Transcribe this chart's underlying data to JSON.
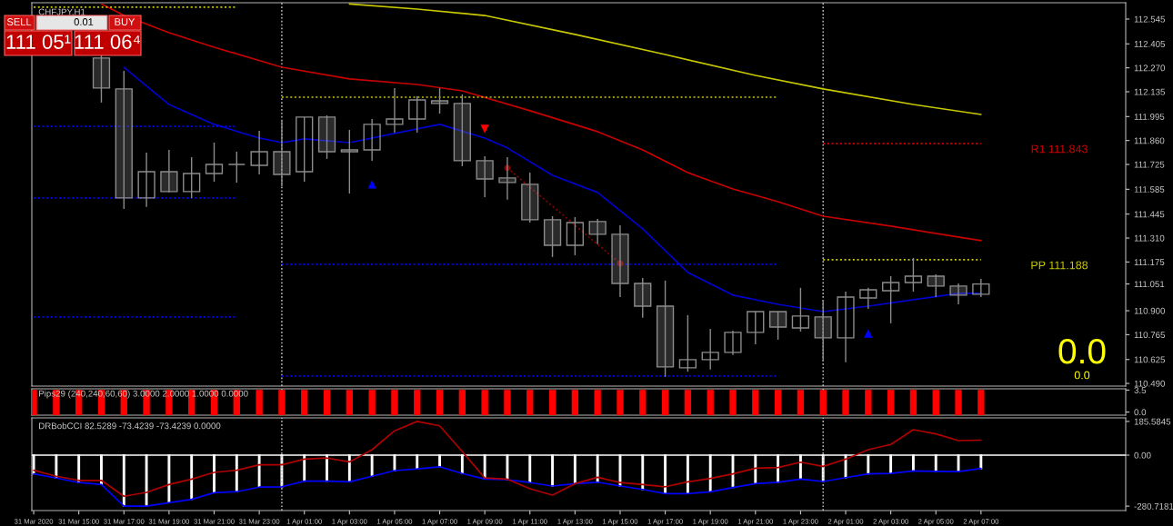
{
  "chart_data": [
    {
      "type": "candlestick",
      "title": "CHFJPY,H1",
      "tick_labels": "y",
      "xlim": [
        "2020-03-31T12:55",
        "2020-04-02T13:25"
      ],
      "ylim": [
        110.475,
        112.637
      ],
      "yticks": [
        112.545,
        112.405,
        {
          "value": 112.27,
          "label": "112.270"
        },
        112.135,
        111.995,
        {
          "value": 111.86,
          "label": "111.860"
        },
        111.725,
        111.585,
        111.445,
        {
          "value": 111.31,
          "label": "111.310"
        },
        111.175,
        111.051,
        {
          "value": 110.9,
          "label": "110.900"
        },
        110.765,
        110.625,
        {
          "value": 110.49,
          "label": "110.490"
        }
      ],
      "series": [
        {
          "type": "candlestick",
          "color": "#8c8c8c",
          "x": [
            "2020-03-31T16:00",
            "2020-03-31T17:00",
            "2020-03-31T18:00",
            "2020-03-31T19:00",
            "2020-03-31T20:00",
            "2020-03-31T21:00",
            "2020-03-31T22:00",
            "2020-03-31T23:00",
            "2020-04-01T00:00",
            "2020-04-01T01:00",
            "2020-04-01T02:00",
            "2020-04-01T03:00",
            "2020-04-01T04:00",
            "2020-04-01T05:00",
            "2020-04-01T06:00",
            "2020-04-01T07:00",
            "2020-04-01T08:00",
            "2020-04-01T09:00",
            "2020-04-01T10:00",
            "2020-04-01T11:00",
            "2020-04-01T12:00",
            "2020-04-01T13:00",
            "2020-04-01T14:00",
            "2020-04-01T15:00",
            "2020-04-01T16:00",
            "2020-04-01T17:00",
            "2020-04-01T18:00",
            "2020-04-01T19:00",
            "2020-04-01T20:00",
            "2020-04-01T21:00",
            "2020-04-01T22:00",
            "2020-04-01T23:00",
            "2020-04-02T00:00",
            "2020-04-02T01:00",
            "2020-04-02T02:00",
            "2020-04-02T03:00",
            "2020-04-02T04:00",
            "2020-04-02T05:00",
            "2020-04-02T06:00",
            "2020-04-02T07:00"
          ],
          "ohlc": [
            [
              112.325,
              112.345,
              112.074,
              112.156
            ],
            [
              112.151,
              112.253,
              111.474,
              111.536
            ],
            [
              111.536,
              111.792,
              111.485,
              111.684
            ],
            [
              111.684,
              111.807,
              111.567,
              111.572
            ],
            [
              111.572,
              111.766,
              111.536,
              111.674
            ],
            [
              111.674,
              111.848,
              111.628,
              111.725
            ],
            [
              111.725,
              111.797,
              111.623,
              111.725
            ],
            [
              111.72,
              111.915,
              111.669,
              111.797
            ],
            [
              111.797,
              111.976,
              111.602,
              111.669
            ],
            [
              111.684,
              111.992,
              111.628,
              111.992
            ],
            [
              111.992,
              112.002,
              111.756,
              111.797
            ],
            [
              111.797,
              111.92,
              111.561,
              111.807
            ],
            [
              111.807,
              111.981,
              111.746,
              111.951
            ],
            [
              111.951,
              112.156,
              111.905,
              111.981
            ],
            [
              111.981,
              112.11,
              111.905,
              112.089
            ],
            [
              112.084,
              112.156,
              112.012,
              112.069
            ],
            [
              112.069,
              112.12,
              111.715,
              111.746
            ],
            [
              111.746,
              111.771,
              111.541,
              111.643
            ],
            [
              111.649,
              111.766,
              111.526,
              111.623
            ],
            [
              111.613,
              111.679,
              111.397,
              111.413
            ],
            [
              111.413,
              111.433,
              111.203,
              111.269
            ],
            [
              111.269,
              111.428,
              111.213,
              111.397
            ],
            [
              111.403,
              111.418,
              111.275,
              111.331
            ],
            [
              111.331,
              111.382,
              110.977,
              111.054
            ],
            [
              111.054,
              111.085,
              110.86,
              110.926
            ],
            [
              110.926,
              111.07,
              110.527,
              110.583
            ],
            [
              110.578,
              110.875,
              110.557,
              110.624
            ],
            [
              110.624,
              110.798,
              110.568,
              110.665
            ],
            [
              110.665,
              110.788,
              110.65,
              110.778
            ],
            [
              110.778,
              110.895,
              110.711,
              110.895
            ],
            [
              110.895,
              110.895,
              110.737,
              110.808
            ],
            [
              110.803,
              111.029,
              110.783,
              110.87
            ],
            [
              110.865,
              110.962,
              110.614,
              110.747
            ],
            [
              110.747,
              111.008,
              110.609,
              110.977
            ],
            [
              110.972,
              111.029,
              110.911,
              111.018
            ],
            [
              111.013,
              111.095,
              110.829,
              111.059
            ],
            [
              111.059,
              111.198,
              111.008,
              111.095
            ],
            [
              111.095,
              111.105,
              110.977,
              111.039
            ],
            [
              111.039,
              111.054,
              110.936,
              110.988
            ],
            [
              110.993,
              111.08,
              110.977,
              111.051
            ]
          ]
        },
        {
          "type": "line",
          "color": "#c8c800",
          "x": [
            "2020-04-01T03:00",
            "2020-04-01T06:00",
            "2020-04-01T09:00",
            "2020-04-01T13:00",
            "2020-04-01T17:00",
            "2020-04-01T21:00",
            "2020-04-02T00:00",
            "2020-04-02T04:00",
            "2020-04-02T07:00"
          ],
          "values": [
            112.63,
            112.601,
            112.565,
            112.458,
            112.345,
            112.227,
            112.151,
            112.063,
            112.007
          ]
        },
        {
          "type": "line",
          "color": "#c80000",
          "x": [
            "2020-03-31T16:00",
            "2020-03-31T17:00",
            "2020-03-31T19:00",
            "2020-03-31T21:00",
            "2020-04-01T00:00",
            "2020-04-01T03:00",
            "2020-04-01T06:00",
            "2020-04-01T08:00",
            "2020-04-01T11:00",
            "2020-04-01T14:00",
            "2020-04-01T16:00",
            "2020-04-01T18:00",
            "2020-04-01T20:00",
            "2020-04-01T22:00",
            "2020-04-02T00:00",
            "2020-04-02T03:00",
            "2020-04-02T07:00"
          ],
          "values": [
            112.63,
            112.565,
            112.468,
            112.386,
            112.273,
            112.207,
            112.176,
            112.14,
            112.028,
            111.91,
            111.807,
            111.679,
            111.587,
            111.515,
            111.433,
            111.377,
            111.295
          ]
        },
        {
          "type": "line",
          "color": "#0000d0",
          "x": [
            "2020-03-31T17:00",
            "2020-03-31T19:00",
            "2020-03-31T21:00",
            "2020-03-31T23:00",
            "2020-04-01T00:00",
            "2020-04-01T01:00",
            "2020-04-01T03:00",
            "2020-04-01T05:00",
            "2020-04-01T07:00",
            "2020-04-01T09:00",
            "2020-04-01T10:00",
            "2020-04-01T12:00",
            "2020-04-01T14:00",
            "2020-04-01T16:00",
            "2020-04-01T18:00",
            "2020-04-01T20:00",
            "2020-04-01T22:00",
            "2020-04-02T00:00",
            "2020-04-02T02:00",
            "2020-04-02T04:00",
            "2020-04-02T06:00",
            "2020-04-02T07:00"
          ],
          "values": [
            112.273,
            112.063,
            111.951,
            111.874,
            111.848,
            111.869,
            111.848,
            111.9,
            111.951,
            111.874,
            111.818,
            111.664,
            111.567,
            111.362,
            111.116,
            110.988,
            110.936,
            110.895,
            110.926,
            110.962,
            110.998,
            110.998
          ]
        },
        {
          "type": "line",
          "color": "#c8c800",
          "line_style": "dotted",
          "x": [
            "2020-03-31T13:00",
            "2020-03-31T22:00"
          ],
          "values": [
            112.612,
            112.612
          ]
        },
        {
          "type": "line",
          "color": "#0000ff",
          "line_style": "dotted",
          "x": [
            "2020-03-31T13:00",
            "2020-03-31T22:00"
          ],
          "values": [
            111.94,
            111.94
          ]
        },
        {
          "type": "line",
          "color": "#0000ff",
          "line_style": "dotted",
          "x": [
            "2020-03-31T13:00",
            "2020-03-31T22:00"
          ],
          "values": [
            111.536,
            111.536
          ]
        },
        {
          "type": "line",
          "color": "#0000ff",
          "line_style": "dotted",
          "x": [
            "2020-03-31T13:00",
            "2020-03-31T22:00"
          ],
          "values": [
            110.865,
            110.865
          ]
        },
        {
          "type": "line",
          "color": "#c8c800",
          "line_style": "dotted",
          "x": [
            "2020-04-01T00:00",
            "2020-04-01T22:00"
          ],
          "values": [
            112.104,
            112.104
          ]
        },
        {
          "type": "line",
          "color": "#0000ff",
          "line_style": "dotted",
          "x": [
            "2020-04-01T00:00",
            "2020-04-01T22:00"
          ],
          "values": [
            111.162,
            111.162
          ]
        },
        {
          "type": "line",
          "color": "#0000ff",
          "line_style": "dotted",
          "x": [
            "2020-04-01T00:00",
            "2020-04-01T22:00"
          ],
          "values": [
            110.532,
            110.532
          ]
        },
        {
          "type": "line",
          "color": "#ff0000",
          "line_style": "dotted",
          "x": [
            "2020-04-02T00:00",
            "2020-04-02T07:00"
          ],
          "values": [
            111.843,
            111.843
          ]
        },
        {
          "type": "line",
          "color": "#c8c800",
          "line_style": "dotted",
          "x": [
            "2020-04-02T00:00",
            "2020-04-02T07:00"
          ],
          "values": [
            111.188,
            111.188
          ]
        },
        {
          "type": "line",
          "color": "#8b0000",
          "line_style": "dotted",
          "marker": "circle",
          "x": [
            "2020-04-01T10:00",
            "2020-04-01T15:00"
          ],
          "values": [
            111.705,
            111.167
          ]
        },
        {
          "type": "scatter",
          "color": "#0000ff",
          "marker": "triangle",
          "x": [
            "2020-04-01T04:00",
            "2020-04-02T02:00"
          ],
          "values": [
            111.613,
            110.772
          ]
        },
        {
          "type": "scatter",
          "color": "#ff0000",
          "marker": "triangle",
          "x": [
            "2020-04-01T09:00"
          ],
          "values": [
            111.925
          ]
        }
      ],
      "ref_lines": [
        {
          "axis": "x",
          "value": "2020-04-01T00:00",
          "color": "#c8c8c8",
          "line_style": "dotted"
        },
        {
          "axis": "x",
          "value": "2020-04-02T00:00",
          "color": "#c8c8c8",
          "line_style": "dotted"
        }
      ],
      "annotations": [
        "SELL",
        "0.01",
        "BUY",
        "111 05¹",
        "111 06⁴",
        "0.0",
        "0.0",
        "R1 111.843",
        "PP 111.188"
      ]
    },
    {
      "type": "scatter",
      "title": "Pips29 (240,240,60,60) 3.0000 2.0000 1.0000 0.0000",
      "tick_labels": "y",
      "marker": "square",
      "xlim": [
        "2020-03-31T12:55",
        "2020-04-02T13:25"
      ],
      "ylim": [
        -0.5,
        3.7
      ],
      "yticks": [
        3.5,
        {
          "value": 0,
          "label": "0.0"
        }
      ],
      "x": [
        "2020-03-31T13:00",
        "2020-03-31T14:00",
        "2020-03-31T15:00",
        "2020-03-31T16:00",
        "2020-03-31T17:00",
        "2020-03-31T18:00",
        "2020-03-31T19:00",
        "2020-03-31T20:00",
        "2020-03-31T21:00",
        "2020-03-31T22:00",
        "2020-03-31T23:00",
        "2020-04-01T00:00",
        "2020-04-01T01:00",
        "2020-04-01T02:00",
        "2020-04-01T03:00",
        "2020-04-01T04:00",
        "2020-04-01T05:00",
        "2020-04-01T06:00",
        "2020-04-01T07:00",
        "2020-04-01T08:00",
        "2020-04-01T09:00",
        "2020-04-01T10:00",
        "2020-04-01T11:00",
        "2020-04-01T12:00",
        "2020-04-01T13:00",
        "2020-04-01T14:00",
        "2020-04-01T15:00",
        "2020-04-01T16:00",
        "2020-04-01T17:00",
        "2020-04-01T18:00",
        "2020-04-01T19:00",
        "2020-04-01T20:00",
        "2020-04-01T21:00",
        "2020-04-01T22:00",
        "2020-04-01T23:00",
        "2020-04-02T00:00",
        "2020-04-02T01:00",
        "2020-04-02T02:00",
        "2020-04-02T03:00",
        "2020-04-02T04:00",
        "2020-04-02T05:00",
        "2020-04-02T06:00",
        "2020-04-02T07:00"
      ],
      "series": [
        {
          "color": "#ff0000",
          "values": [
            3,
            3,
            3,
            3,
            3,
            3,
            3,
            3,
            3,
            3,
            3,
            3,
            3,
            3,
            3,
            3,
            3,
            3,
            3,
            3,
            3,
            3,
            3,
            3,
            3,
            3,
            3,
            3,
            3,
            3,
            3,
            3,
            3,
            3,
            3,
            3,
            3,
            3,
            3,
            3,
            3,
            3,
            3
          ]
        },
        {
          "color": "#ff0000",
          "values": [
            2,
            2,
            2,
            2,
            2,
            2,
            2,
            2,
            2,
            2,
            2,
            2,
            2,
            2,
            2,
            2,
            2,
            2,
            2,
            2,
            2,
            2,
            2,
            2,
            2,
            2,
            2,
            2,
            2,
            2,
            2,
            2,
            2,
            2,
            2,
            2,
            2,
            2,
            2,
            2,
            2,
            2,
            2
          ]
        },
        {
          "color": "#ff0000",
          "values": [
            1,
            1,
            1,
            1,
            1,
            1,
            1,
            1,
            1,
            1,
            1,
            1,
            1,
            1,
            1,
            1,
            1,
            1,
            1,
            1,
            1,
            1,
            1,
            1,
            1,
            1,
            1,
            1,
            1,
            1,
            1,
            1,
            1,
            1,
            1,
            1,
            1,
            1,
            1,
            1,
            1,
            1,
            1
          ]
        },
        {
          "color": "#ff0000",
          "values": [
            0,
            0,
            0,
            0,
            0,
            0,
            0,
            0,
            0,
            0,
            0,
            0,
            0,
            0,
            0,
            0,
            0,
            0,
            0,
            0,
            0,
            0,
            0,
            0,
            0,
            0,
            0,
            0,
            0,
            0,
            0,
            0,
            0,
            0,
            0,
            0,
            0,
            0,
            0,
            0,
            0,
            0,
            0
          ]
        }
      ],
      "ref_lines": [
        {
          "axis": "x",
          "value": "2020-04-01T00:00",
          "color": "#c8c8c8",
          "line_style": "dotted"
        },
        {
          "axis": "x",
          "value": "2020-04-02T00:00",
          "color": "#c8c8c8",
          "line_style": "dotted"
        }
      ]
    },
    {
      "type": "line",
      "title": "DRBobCCI 82.5289 -73.4239 -73.4239 0.0000",
      "xlim": [
        "2020-03-31T12:55",
        "2020-04-02T13:25"
      ],
      "ylim": [
        -305,
        205
      ],
      "yticks": [
        185.5845,
        {
          "value": 0,
          "label": "0.00"
        },
        -280.7181
      ],
      "xticks": [
        {
          "value": "2020-03-31T13:00",
          "label": "31 Mar 2020"
        },
        {
          "value": "2020-03-31T15:00",
          "label": "31 Mar 15:00"
        },
        {
          "value": "2020-03-31T17:00",
          "label": "31 Mar 17:00"
        },
        {
          "value": "2020-03-31T19:00",
          "label": "31 Mar 19:00"
        },
        {
          "value": "2020-03-31T21:00",
          "label": "31 Mar 21:00"
        },
        {
          "value": "2020-03-31T23:00",
          "label": "31 Mar 23:00"
        },
        {
          "value": "2020-04-01T01:00",
          "label": "1 Apr 01:00"
        },
        {
          "value": "2020-04-01T03:00",
          "label": "1 Apr 03:00"
        },
        {
          "value": "2020-04-01T05:00",
          "label": "1 Apr 05:00"
        },
        {
          "value": "2020-04-01T07:00",
          "label": "1 Apr 07:00"
        },
        {
          "value": "2020-04-01T09:00",
          "label": "1 Apr 09:00"
        },
        {
          "value": "2020-04-01T11:00",
          "label": "1 Apr 11:00"
        },
        {
          "value": "2020-04-01T13:00",
          "label": "1 Apr 13:00"
        },
        {
          "value": "2020-04-01T15:00",
          "label": "1 Apr 15:00"
        },
        {
          "value": "2020-04-01T17:00",
          "label": "1 Apr 17:00"
        },
        {
          "value": "2020-04-01T19:00",
          "label": "1 Apr 19:00"
        },
        {
          "value": "2020-04-01T21:00",
          "label": "1 Apr 21:00"
        },
        {
          "value": "2020-04-01T23:00",
          "label": "1 Apr 23:00"
        },
        {
          "value": "2020-04-02T01:00",
          "label": "2 Apr 01:00"
        },
        {
          "value": "2020-04-02T03:00",
          "label": "2 Apr 03:00"
        },
        {
          "value": "2020-04-02T05:00",
          "label": "2 Apr 05:00"
        },
        {
          "value": "2020-04-02T07:00",
          "label": "2 Apr 07:00"
        }
      ],
      "x": [
        "2020-03-31T13:00",
        "2020-03-31T14:00",
        "2020-03-31T15:00",
        "2020-03-31T16:00",
        "2020-03-31T17:00",
        "2020-03-31T18:00",
        "2020-03-31T19:00",
        "2020-03-31T20:00",
        "2020-03-31T21:00",
        "2020-03-31T22:00",
        "2020-03-31T23:00",
        "2020-04-01T00:00",
        "2020-04-01T01:00",
        "2020-04-01T02:00",
        "2020-04-01T03:00",
        "2020-04-01T04:00",
        "2020-04-01T05:00",
        "2020-04-01T06:00",
        "2020-04-01T07:00",
        "2020-04-01T08:00",
        "2020-04-01T09:00",
        "2020-04-01T10:00",
        "2020-04-01T11:00",
        "2020-04-01T12:00",
        "2020-04-01T13:00",
        "2020-04-01T14:00",
        "2020-04-01T15:00",
        "2020-04-01T16:00",
        "2020-04-01T17:00",
        "2020-04-01T18:00",
        "2020-04-01T19:00",
        "2020-04-01T20:00",
        "2020-04-01T21:00",
        "2020-04-01T22:00",
        "2020-04-01T23:00",
        "2020-04-02T00:00",
        "2020-04-02T01:00",
        "2020-04-02T02:00",
        "2020-04-02T03:00",
        "2020-04-02T04:00",
        "2020-04-02T05:00",
        "2020-04-02T06:00",
        "2020-04-02T07:00"
      ],
      "series": [
        {
          "type": "bar",
          "color": "#ffffff",
          "values": [
            -103,
            -126,
            -151,
            -162,
            -280.7181,
            -280.7181,
            -262,
            -243,
            -207,
            -201,
            -176,
            -174,
            -143,
            -143,
            -147,
            -116,
            -85,
            -76,
            -64,
            -101,
            -132,
            -135,
            -151,
            -170,
            -157,
            -149,
            -170,
            -189,
            -212,
            -212,
            -202,
            -178,
            -157,
            -149,
            -132,
            -145,
            -124,
            -103,
            -101,
            -87,
            -89,
            -91,
            -73.4239
          ]
        },
        {
          "type": "line",
          "color": "#0000ff",
          "values": [
            -103,
            -126,
            -151,
            -162,
            -280.7181,
            -280.7181,
            -262,
            -243,
            -207,
            -201,
            -176,
            -174,
            -143,
            -143,
            -147,
            -116,
            -85,
            -76,
            -64,
            -101,
            -132,
            -135,
            -151,
            -170,
            -157,
            -149,
            -170,
            -189,
            -212,
            -212,
            -202,
            -178,
            -157,
            -149,
            -132,
            -145,
            -124,
            -103,
            -101,
            -87,
            -89,
            -91,
            -73.4239
          ]
        },
        {
          "type": "line",
          "color": "#b00000",
          "values": [
            -83,
            -116,
            -139,
            -139,
            -226,
            -205,
            -162,
            -132,
            -95,
            -83,
            -53,
            -53,
            -22,
            -16,
            -37,
            30,
            134,
            185.5845,
            161,
            20,
            -126,
            -132,
            -185,
            -220,
            -157,
            -122,
            -151,
            -162,
            -174,
            -147,
            -128,
            -103,
            -72,
            -68,
            -39,
            -62,
            -22,
            30,
            59,
            140,
            117,
            80,
            82.5289
          ]
        }
      ],
      "ref_lines": [
        {
          "axis": "y",
          "value": 0,
          "color": "#ffffff",
          "line_style": "solid"
        },
        {
          "axis": "x",
          "value": "2020-04-01T00:00",
          "color": "#c8c8c8",
          "line_style": "dotted"
        },
        {
          "axis": "x",
          "value": "2020-04-02T00:00",
          "color": "#c8c8c8",
          "line_style": "dotted"
        }
      ]
    }
  ]
}
